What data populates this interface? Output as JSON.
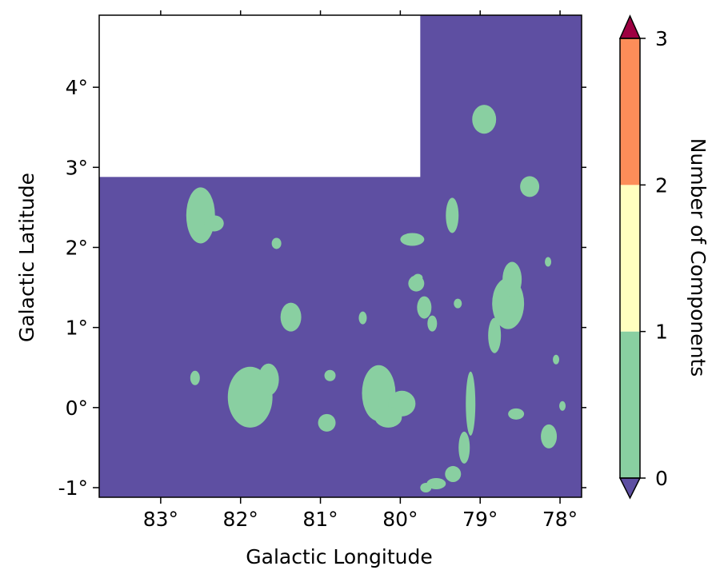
{
  "chart_data": {
    "type": "heatmap",
    "title": "",
    "xlabel": "Galactic Longitude",
    "ylabel": "Galactic Latitude",
    "xlim": [
      83.77,
      77.73
    ],
    "ylim": [
      -1.12,
      4.9
    ],
    "x_ticks": [
      {
        "value": 83,
        "label": "83°"
      },
      {
        "value": 82,
        "label": "82°"
      },
      {
        "value": 81,
        "label": "81°"
      },
      {
        "value": 80,
        "label": "80°"
      },
      {
        "value": 79,
        "label": "79°"
      },
      {
        "value": 78,
        "label": "78°"
      }
    ],
    "y_ticks": [
      {
        "value": -1,
        "label": "-1°"
      },
      {
        "value": 0,
        "label": "0°"
      },
      {
        "value": 1,
        "label": "1°"
      },
      {
        "value": 2,
        "label": "2°"
      },
      {
        "value": 3,
        "label": "3°"
      },
      {
        "value": 4,
        "label": "4°"
      }
    ],
    "background_value": 0,
    "no_data_region": {
      "l_min": 79.75,
      "l_max": 83.77,
      "b_min": 2.88,
      "b_max": 4.9
    },
    "regions_value_1": [
      {
        "l": 82.5,
        "b": 2.4,
        "rl": 0.18,
        "rb": 0.35
      },
      {
        "l": 82.33,
        "b": 2.3,
        "rl": 0.12,
        "rb": 0.1
      },
      {
        "l": 81.55,
        "b": 2.05,
        "rl": 0.06,
        "rb": 0.07
      },
      {
        "l": 81.37,
        "b": 1.13,
        "rl": 0.13,
        "rb": 0.18
      },
      {
        "l": 80.47,
        "b": 1.12,
        "rl": 0.05,
        "rb": 0.08
      },
      {
        "l": 81.88,
        "b": 0.13,
        "rl": 0.28,
        "rb": 0.38
      },
      {
        "l": 81.65,
        "b": 0.35,
        "rl": 0.13,
        "rb": 0.2
      },
      {
        "l": 82.57,
        "b": 0.37,
        "rl": 0.06,
        "rb": 0.09
      },
      {
        "l": 80.88,
        "b": 0.4,
        "rl": 0.07,
        "rb": 0.07
      },
      {
        "l": 80.92,
        "b": -0.19,
        "rl": 0.11,
        "rb": 0.11
      },
      {
        "l": 80.27,
        "b": 0.18,
        "rl": 0.21,
        "rb": 0.35
      },
      {
        "l": 79.98,
        "b": 0.05,
        "rl": 0.17,
        "rb": 0.16
      },
      {
        "l": 80.15,
        "b": -0.12,
        "rl": 0.17,
        "rb": 0.13
      },
      {
        "l": 79.85,
        "b": 2.1,
        "rl": 0.15,
        "rb": 0.08
      },
      {
        "l": 79.8,
        "b": 1.55,
        "rl": 0.1,
        "rb": 0.1
      },
      {
        "l": 79.7,
        "b": 1.25,
        "rl": 0.09,
        "rb": 0.14
      },
      {
        "l": 79.6,
        "b": 1.05,
        "rl": 0.06,
        "rb": 0.1
      },
      {
        "l": 79.78,
        "b": 1.62,
        "rl": 0.06,
        "rb": 0.05
      },
      {
        "l": 79.35,
        "b": 2.4,
        "rl": 0.08,
        "rb": 0.22
      },
      {
        "l": 79.28,
        "b": 1.3,
        "rl": 0.05,
        "rb": 0.06
      },
      {
        "l": 78.95,
        "b": 3.6,
        "rl": 0.15,
        "rb": 0.18
      },
      {
        "l": 78.65,
        "b": 1.3,
        "rl": 0.2,
        "rb": 0.32
      },
      {
        "l": 78.6,
        "b": 1.6,
        "rl": 0.12,
        "rb": 0.22
      },
      {
        "l": 78.82,
        "b": 0.9,
        "rl": 0.08,
        "rb": 0.22
      },
      {
        "l": 78.38,
        "b": 2.76,
        "rl": 0.12,
        "rb": 0.13
      },
      {
        "l": 78.15,
        "b": 1.82,
        "rl": 0.04,
        "rb": 0.06
      },
      {
        "l": 78.05,
        "b": 0.6,
        "rl": 0.04,
        "rb": 0.06
      },
      {
        "l": 77.97,
        "b": 0.02,
        "rl": 0.04,
        "rb": 0.06
      },
      {
        "l": 78.14,
        "b": -0.36,
        "rl": 0.1,
        "rb": 0.15
      },
      {
        "l": 78.55,
        "b": -0.08,
        "rl": 0.1,
        "rb": 0.07
      },
      {
        "l": 79.12,
        "b": 0.05,
        "rl": 0.06,
        "rb": 0.4
      },
      {
        "l": 79.2,
        "b": -0.5,
        "rl": 0.07,
        "rb": 0.2
      },
      {
        "l": 79.34,
        "b": -0.83,
        "rl": 0.1,
        "rb": 0.1
      },
      {
        "l": 79.55,
        "b": -0.95,
        "rl": 0.12,
        "rb": 0.07
      },
      {
        "l": 79.68,
        "b": -1.0,
        "rl": 0.07,
        "rb": 0.06
      }
    ],
    "colorbar": {
      "label": "Number of Components",
      "ticks": [
        {
          "value": 0,
          "label": "0"
        },
        {
          "value": 1,
          "label": "1"
        },
        {
          "value": 2,
          "label": "2"
        },
        {
          "value": 3,
          "label": "3"
        }
      ],
      "bins": [
        {
          "from": 0,
          "to": 1,
          "color": "#89cfa1"
        },
        {
          "from": 1,
          "to": 2,
          "color": "#ffffbf"
        },
        {
          "from": 2,
          "to": 3,
          "color": "#fc8d59"
        }
      ],
      "under_color": "#5e4fa2",
      "over_color": "#9e0142",
      "extend": "both"
    },
    "colors": {
      "no_data": "#ffffff"
    }
  }
}
